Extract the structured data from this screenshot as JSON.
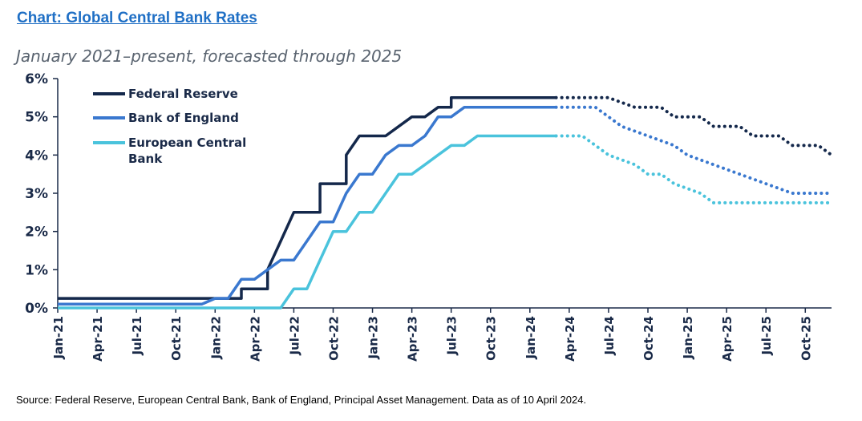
{
  "header": {
    "title": "Chart: Global Central Bank Rates",
    "subtitle": "January 2021–present, forecasted through 2025"
  },
  "footer": {
    "source": "Source: Federal Reserve, European Central Bank, Bank of England, Principal Asset Management. Data as of 10 April 2024."
  },
  "chart_data": {
    "type": "line",
    "title": "Chart: Global Central Bank Rates",
    "subtitle": "January 2021–present, forecasted through 2025",
    "xlabel": "",
    "ylabel": "",
    "x_range": [
      "2021-01",
      "2025-12"
    ],
    "ylim": [
      0,
      6
    ],
    "y_ticks": [
      0,
      1,
      2,
      3,
      4,
      5,
      6
    ],
    "y_tick_labels": [
      "0%",
      "1%",
      "2%",
      "3%",
      "4%",
      "5%",
      "6%"
    ],
    "x_ticks": [
      "2021-01",
      "2021-04",
      "2021-07",
      "2021-10",
      "2022-01",
      "2022-04",
      "2022-07",
      "2022-10",
      "2023-01",
      "2023-04",
      "2023-07",
      "2023-10",
      "2024-01",
      "2024-04",
      "2024-07",
      "2024-10",
      "2025-01",
      "2025-04",
      "2025-07",
      "2025-10"
    ],
    "x_tick_labels": [
      "Jan-21",
      "Apr-21",
      "Jul-21",
      "Oct-21",
      "Jan-22",
      "Apr-22",
      "Jul-22",
      "Oct-22",
      "Jan-23",
      "Apr-23",
      "Jul-23",
      "Oct-23",
      "Jan-24",
      "Apr-24",
      "Jul-24",
      "Oct-24",
      "Jan-25",
      "Apr-25",
      "Jul-25",
      "Oct-25"
    ],
    "grid": false,
    "legend_position": "top-left",
    "line_style_note_values": [
      "solid",
      "dotted"
    ],
    "series": [
      {
        "name": "Federal Reserve",
        "color": "#14284b",
        "actual": [
          [
            "2021-01",
            0.25
          ],
          [
            "2022-03",
            0.25
          ],
          [
            "2022-03",
            0.5
          ],
          [
            "2022-05",
            0.5
          ],
          [
            "2022-05",
            1.0
          ],
          [
            "2022-06",
            1.75
          ],
          [
            "2022-07",
            2.5
          ],
          [
            "2022-09",
            2.5
          ],
          [
            "2022-09",
            3.25
          ],
          [
            "2022-11",
            3.25
          ],
          [
            "2022-11",
            4.0
          ],
          [
            "2022-12",
            4.5
          ],
          [
            "2023-02",
            4.5
          ],
          [
            "2023-03",
            4.75
          ],
          [
            "2023-04",
            5.0
          ],
          [
            "2023-05",
            5.0
          ],
          [
            "2023-06",
            5.25
          ],
          [
            "2023-07",
            5.25
          ],
          [
            "2023-07",
            5.5
          ],
          [
            "2024-03",
            5.5
          ]
        ],
        "forecast": [
          [
            "2024-03",
            5.5
          ],
          [
            "2024-07",
            5.5
          ],
          [
            "2024-09",
            5.25
          ],
          [
            "2024-11",
            5.25
          ],
          [
            "2024-12",
            5.0
          ],
          [
            "2025-02",
            5.0
          ],
          [
            "2025-03",
            4.75
          ],
          [
            "2025-05",
            4.75
          ],
          [
            "2025-06",
            4.5
          ],
          [
            "2025-08",
            4.5
          ],
          [
            "2025-09",
            4.25
          ],
          [
            "2025-11",
            4.25
          ],
          [
            "2025-12",
            4.0
          ]
        ]
      },
      {
        "name": "Bank of England",
        "color": "#3a78cf",
        "actual": [
          [
            "2021-01",
            0.1
          ],
          [
            "2021-12",
            0.1
          ],
          [
            "2022-01",
            0.25
          ],
          [
            "2022-02",
            0.25
          ],
          [
            "2022-03",
            0.75
          ],
          [
            "2022-04",
            0.75
          ],
          [
            "2022-05",
            1.0
          ],
          [
            "2022-06",
            1.25
          ],
          [
            "2022-07",
            1.25
          ],
          [
            "2022-08",
            1.75
          ],
          [
            "2022-09",
            2.25
          ],
          [
            "2022-10",
            2.25
          ],
          [
            "2022-11",
            3.0
          ],
          [
            "2022-12",
            3.5
          ],
          [
            "2023-01",
            3.5
          ],
          [
            "2023-02",
            4.0
          ],
          [
            "2023-03",
            4.25
          ],
          [
            "2023-04",
            4.25
          ],
          [
            "2023-05",
            4.5
          ],
          [
            "2023-06",
            5.0
          ],
          [
            "2023-07",
            5.0
          ],
          [
            "2023-08",
            5.25
          ],
          [
            "2024-03",
            5.25
          ]
        ],
        "forecast": [
          [
            "2024-03",
            5.25
          ],
          [
            "2024-06",
            5.25
          ],
          [
            "2024-08",
            4.75
          ],
          [
            "2024-10",
            4.5
          ],
          [
            "2024-12",
            4.25
          ],
          [
            "2025-01",
            4.0
          ],
          [
            "2025-03",
            3.75
          ],
          [
            "2025-05",
            3.5
          ],
          [
            "2025-07",
            3.25
          ],
          [
            "2025-09",
            3.0
          ],
          [
            "2025-12",
            3.0
          ]
        ]
      },
      {
        "name": "European Central Bank",
        "legend_lines": [
          "European Central",
          "Bank"
        ],
        "color": "#4ac3dc",
        "actual": [
          [
            "2021-01",
            0.0
          ],
          [
            "2022-06",
            0.0
          ],
          [
            "2022-07",
            0.5
          ],
          [
            "2022-08",
            0.5
          ],
          [
            "2022-09",
            1.25
          ],
          [
            "2022-10",
            2.0
          ],
          [
            "2022-11",
            2.0
          ],
          [
            "2022-12",
            2.5
          ],
          [
            "2023-01",
            2.5
          ],
          [
            "2023-02",
            3.0
          ],
          [
            "2023-03",
            3.5
          ],
          [
            "2023-04",
            3.5
          ],
          [
            "2023-05",
            3.75
          ],
          [
            "2023-06",
            4.0
          ],
          [
            "2023-07",
            4.25
          ],
          [
            "2023-08",
            4.25
          ],
          [
            "2023-09",
            4.5
          ],
          [
            "2024-03",
            4.5
          ]
        ],
        "forecast": [
          [
            "2024-03",
            4.5
          ],
          [
            "2024-05",
            4.5
          ],
          [
            "2024-06",
            4.25
          ],
          [
            "2024-07",
            4.0
          ],
          [
            "2024-09",
            3.75
          ],
          [
            "2024-10",
            3.5
          ],
          [
            "2024-11",
            3.5
          ],
          [
            "2024-12",
            3.25
          ],
          [
            "2025-02",
            3.0
          ],
          [
            "2025-03",
            2.75
          ],
          [
            "2025-12",
            2.75
          ]
        ]
      }
    ]
  }
}
